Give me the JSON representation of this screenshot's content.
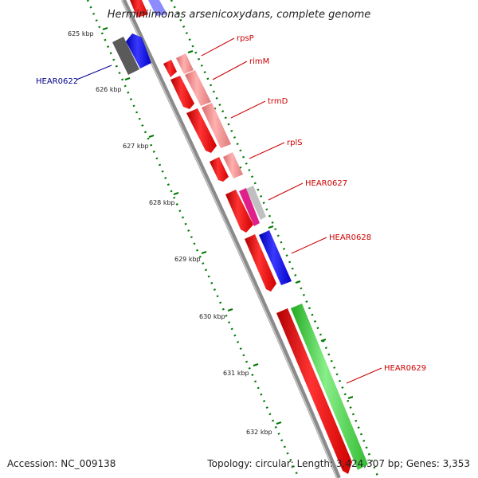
{
  "title": "Herminiimonas arsenicoxydans, complete genome",
  "footer": {
    "accession": "Accession: NC_009138",
    "summary": "Topology: circular; Length: 3,424,307 bp; Genes: 3,353"
  },
  "ticks": [
    "625 kbp",
    "626 kbp",
    "627 kbp",
    "628 kbp",
    "629 kbp",
    "630 kbp",
    "631 kbp",
    "632 kbp"
  ],
  "gene_labels": [
    {
      "name": "HEAR0622",
      "color": "#00008b"
    },
    {
      "name": "rpsP",
      "color": "#cc0000"
    },
    {
      "name": "rimM",
      "color": "#cc0000"
    },
    {
      "name": "trmD",
      "color": "#cc0000"
    },
    {
      "name": "rplS",
      "color": "#cc0000"
    },
    {
      "name": "HEAR0627",
      "color": "#cc0000"
    },
    {
      "name": "HEAR0628",
      "color": "#cc0000"
    },
    {
      "name": "HEAR0629",
      "color": "#cc0000"
    }
  ],
  "colors": {
    "backbone": "#8a8a8a",
    "cds_red": "#ff0000",
    "cds_pink": "#f08080",
    "cds_blue": "#0000ff",
    "cds_green": "#33cc33",
    "cds_gray": "#666666",
    "cds_magenta": "#e0208a",
    "tick_green": "#007700"
  }
}
